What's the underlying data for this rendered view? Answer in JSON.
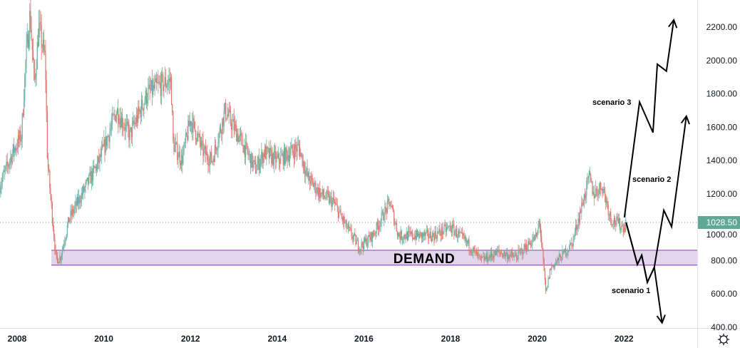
{
  "chart_data": {
    "type": "candlestick",
    "title": "",
    "xlim": [
      2007.6,
      2023.9
    ],
    "ylim": [
      400,
      2300
    ],
    "x_ticks": [
      "2008",
      "2010",
      "2012",
      "2014",
      "2016",
      "2018",
      "2020",
      "2022"
    ],
    "y_ticks": [
      "400.00",
      "600.00",
      "800.00",
      "1000.00",
      "1200.00",
      "1400.00",
      "1600.00",
      "1800.00",
      "2000.00",
      "2200.00"
    ],
    "grid": false,
    "price_path": [
      [
        2007.6,
        1250
      ],
      [
        2007.9,
        1450
      ],
      [
        2008.1,
        1550
      ],
      [
        2008.2,
        2000
      ],
      [
        2008.3,
        2280
      ],
      [
        2008.4,
        1850
      ],
      [
        2008.5,
        2200
      ],
      [
        2008.65,
        2000
      ],
      [
        2008.7,
        1400
      ],
      [
        2008.8,
        1100
      ],
      [
        2008.9,
        800
      ],
      [
        2009.0,
        820
      ],
      [
        2009.2,
        1050
      ],
      [
        2009.5,
        1200
      ],
      [
        2009.9,
        1400
      ],
      [
        2010.3,
        1700
      ],
      [
        2010.6,
        1550
      ],
      [
        2011.0,
        1800
      ],
      [
        2011.3,
        1850
      ],
      [
        2011.55,
        1880
      ],
      [
        2011.6,
        1500
      ],
      [
        2011.8,
        1400
      ],
      [
        2012.0,
        1650
      ],
      [
        2012.3,
        1450
      ],
      [
        2012.5,
        1400
      ],
      [
        2012.8,
        1700
      ],
      [
        2013.0,
        1600
      ],
      [
        2013.3,
        1450
      ],
      [
        2013.5,
        1350
      ],
      [
        2013.7,
        1450
      ],
      [
        2014.0,
        1400
      ],
      [
        2014.5,
        1480
      ],
      [
        2014.7,
        1300
      ],
      [
        2015.0,
        1200
      ],
      [
        2015.3,
        1150
      ],
      [
        2015.6,
        1000
      ],
      [
        2015.9,
        880
      ],
      [
        2016.2,
        950
      ],
      [
        2016.6,
        1150
      ],
      [
        2016.8,
        950
      ],
      [
        2017.2,
        950
      ],
      [
        2017.6,
        950
      ],
      [
        2018.0,
        1000
      ],
      [
        2018.4,
        900
      ],
      [
        2018.7,
        800
      ],
      [
        2019.1,
        850
      ],
      [
        2019.5,
        820
      ],
      [
        2020.0,
        950
      ],
      [
        2020.05,
        1050
      ],
      [
        2020.2,
        600
      ],
      [
        2020.3,
        750
      ],
      [
        2020.8,
        900
      ],
      [
        2021.0,
        1100
      ],
      [
        2021.2,
        1300
      ],
      [
        2021.3,
        1200
      ],
      [
        2021.5,
        1250
      ],
      [
        2021.7,
        1050
      ],
      [
        2022.0,
        1000
      ],
      [
        2022.05,
        1028.5
      ]
    ],
    "last_price": "1028.50",
    "colors": {
      "up": "#6db3a8",
      "down": "#e0776c",
      "last_price": "#5fa897",
      "zone_fill": "#e2d5ec",
      "zone_border": "#9c4fc1",
      "arrows": "#000000"
    },
    "zones": [
      {
        "label": "DEMAND",
        "from": 2008.79,
        "top": 862,
        "bottom": 773
      }
    ],
    "scenarios": [
      {
        "name": "scenario 3",
        "path": [
          [
            2022.01,
            1059
          ],
          [
            2022.36,
            1751
          ],
          [
            2022.67,
            1568
          ],
          [
            2022.77,
            1978
          ],
          [
            2022.98,
            1936
          ],
          [
            2023.15,
            2243
          ]
        ]
      },
      {
        "name": "scenario 2",
        "path": [
          [
            2022.05,
            1029
          ],
          [
            2022.31,
            777
          ],
          [
            2022.41,
            832
          ],
          [
            2022.54,
            670
          ],
          [
            2022.7,
            760
          ],
          [
            2022.92,
            1102
          ],
          [
            2023.1,
            1003
          ],
          [
            2023.44,
            1666
          ]
        ]
      },
      {
        "name": "scenario 1",
        "path": [
          [
            2022.05,
            1029
          ],
          [
            2022.31,
            777
          ],
          [
            2022.41,
            832
          ],
          [
            2022.54,
            670
          ],
          [
            2022.7,
            760
          ],
          [
            2022.88,
            427
          ]
        ]
      }
    ]
  },
  "ui": {
    "settings_icon": "gear-icon"
  }
}
